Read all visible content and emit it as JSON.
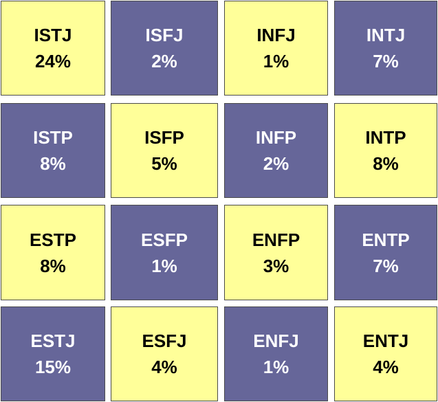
{
  "colors": {
    "yellow": "#ffff99",
    "purple": "#666699"
  },
  "cells": [
    {
      "type": "ISTJ",
      "percent": "24%",
      "color": "yellow"
    },
    {
      "type": "ISFJ",
      "percent": "2%",
      "color": "purple"
    },
    {
      "type": "INFJ",
      "percent": "1%",
      "color": "yellow"
    },
    {
      "type": "INTJ",
      "percent": "7%",
      "color": "purple"
    },
    {
      "type": "ISTP",
      "percent": "8%",
      "color": "purple"
    },
    {
      "type": "ISFP",
      "percent": "5%",
      "color": "yellow"
    },
    {
      "type": "INFP",
      "percent": "2%",
      "color": "purple"
    },
    {
      "type": "INTP",
      "percent": "8%",
      "color": "yellow"
    },
    {
      "type": "ESTP",
      "percent": "8%",
      "color": "yellow"
    },
    {
      "type": "ESFP",
      "percent": "1%",
      "color": "purple"
    },
    {
      "type": "ENFP",
      "percent": "3%",
      "color": "yellow"
    },
    {
      "type": "ENTP",
      "percent": "7%",
      "color": "purple"
    },
    {
      "type": "ESTJ",
      "percent": "15%",
      "color": "purple"
    },
    {
      "type": "ESFJ",
      "percent": "4%",
      "color": "yellow"
    },
    {
      "type": "ENFJ",
      "percent": "1%",
      "color": "purple"
    },
    {
      "type": "ENTJ",
      "percent": "4%",
      "color": "yellow"
    }
  ]
}
